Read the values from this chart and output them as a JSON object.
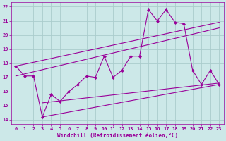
{
  "background_color": "#cce8e8",
  "grid_color": "#aacccc",
  "line_color": "#990099",
  "marker_color": "#990099",
  "xlabel": "Windchill (Refroidissement éolien,°C)",
  "xlabel_color": "#990099",
  "tick_color": "#990099",
  "xlim": [
    -0.5,
    23.5
  ],
  "ylim": [
    13.7,
    22.3
  ],
  "yticks": [
    14,
    15,
    16,
    17,
    18,
    19,
    20,
    21,
    22
  ],
  "xticks": [
    0,
    1,
    2,
    3,
    4,
    5,
    6,
    7,
    8,
    9,
    10,
    11,
    12,
    13,
    14,
    15,
    16,
    17,
    18,
    19,
    20,
    21,
    22,
    23
  ],
  "series1_x": [
    0,
    1,
    2,
    3,
    4,
    5,
    6,
    7,
    8,
    9,
    10,
    11,
    12,
    13,
    14,
    15,
    16,
    17,
    18,
    19,
    20,
    21,
    22,
    23
  ],
  "series1_y": [
    17.8,
    17.1,
    17.1,
    14.2,
    15.8,
    15.3,
    16.0,
    16.5,
    17.1,
    17.0,
    18.5,
    17.0,
    17.5,
    18.5,
    18.5,
    21.8,
    21.0,
    21.8,
    20.9,
    20.8,
    17.5,
    16.5,
    17.5,
    16.5
  ],
  "series2_x": [
    3,
    23
  ],
  "series2_y": [
    14.2,
    16.5
  ],
  "series3_x": [
    3,
    23
  ],
  "series3_y": [
    15.2,
    16.6
  ],
  "series4_x": [
    0,
    23
  ],
  "series4_y": [
    17.1,
    20.5
  ],
  "series5_x": [
    0,
    23
  ],
  "series5_y": [
    17.8,
    20.9
  ]
}
